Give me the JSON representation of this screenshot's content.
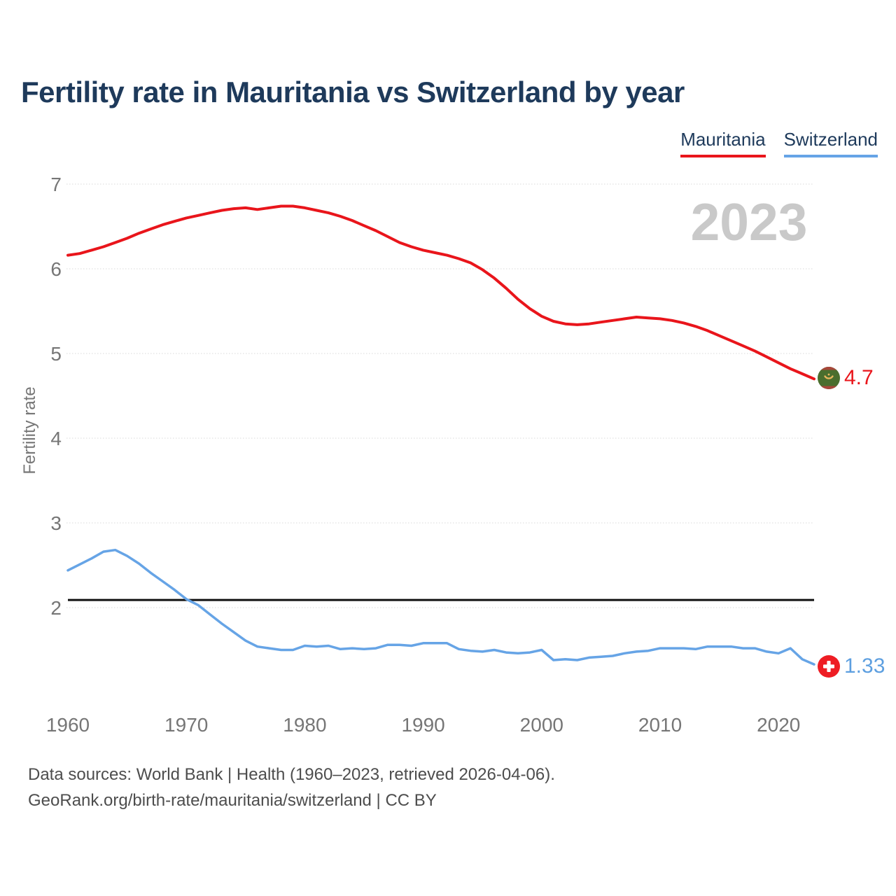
{
  "header": {
    "title": "Fertility rate in Mauritania vs Switzerland by year"
  },
  "legend": {
    "items": [
      {
        "label": "Mauritania",
        "color": "#e9151b"
      },
      {
        "label": "Switzerland",
        "color": "#66a4e6"
      }
    ]
  },
  "watermark": "2023",
  "chart_data": {
    "type": "line",
    "title": "Fertility rate in Mauritania vs Switzerland by year",
    "xlabel": "",
    "ylabel": "Fertility rate",
    "x_ticks": [
      1960,
      1970,
      1980,
      1990,
      2000,
      2010,
      2020
    ],
    "y_ticks": [
      2,
      3,
      4,
      5,
      6,
      7
    ],
    "x_range": [
      1960,
      2023
    ],
    "y_axis_range": [
      2,
      7
    ],
    "grid": true,
    "legend_position": "top-right",
    "reference_line": {
      "value": 2.09,
      "color": "#111111",
      "name": "replacement-level"
    },
    "years": [
      1960,
      1961,
      1962,
      1963,
      1964,
      1965,
      1966,
      1967,
      1968,
      1969,
      1970,
      1971,
      1972,
      1973,
      1974,
      1975,
      1976,
      1977,
      1978,
      1979,
      1980,
      1981,
      1982,
      1983,
      1984,
      1985,
      1986,
      1987,
      1988,
      1989,
      1990,
      1991,
      1992,
      1993,
      1994,
      1995,
      1996,
      1997,
      1998,
      1999,
      2000,
      2001,
      2002,
      2003,
      2004,
      2005,
      2006,
      2007,
      2008,
      2009,
      2010,
      2011,
      2012,
      2013,
      2014,
      2015,
      2016,
      2017,
      2018,
      2019,
      2020,
      2021,
      2022,
      2023
    ],
    "series": [
      {
        "name": "Mauritania",
        "color": "#e9151b",
        "end_label": "4.7",
        "values": [
          6.16,
          6.18,
          6.22,
          6.26,
          6.31,
          6.36,
          6.42,
          6.47,
          6.52,
          6.56,
          6.6,
          6.63,
          6.66,
          6.69,
          6.71,
          6.72,
          6.7,
          6.72,
          6.74,
          6.74,
          6.72,
          6.69,
          6.66,
          6.62,
          6.57,
          6.51,
          6.45,
          6.38,
          6.31,
          6.26,
          6.22,
          6.19,
          6.16,
          6.12,
          6.07,
          5.99,
          5.89,
          5.77,
          5.64,
          5.53,
          5.44,
          5.38,
          5.35,
          5.34,
          5.35,
          5.37,
          5.39,
          5.41,
          5.43,
          5.42,
          5.41,
          5.39,
          5.36,
          5.32,
          5.27,
          5.21,
          5.15,
          5.09,
          5.03,
          4.96,
          4.89,
          4.82,
          4.76,
          4.7
        ]
      },
      {
        "name": "Switzerland",
        "color": "#66a4e6",
        "end_label": "1.33",
        "values": [
          2.44,
          2.51,
          2.58,
          2.66,
          2.68,
          2.61,
          2.52,
          2.41,
          2.31,
          2.21,
          2.1,
          2.03,
          1.92,
          1.81,
          1.71,
          1.61,
          1.54,
          1.52,
          1.5,
          1.5,
          1.55,
          1.54,
          1.55,
          1.51,
          1.52,
          1.51,
          1.52,
          1.56,
          1.56,
          1.55,
          1.58,
          1.58,
          1.58,
          1.51,
          1.49,
          1.48,
          1.5,
          1.47,
          1.46,
          1.47,
          1.5,
          1.38,
          1.39,
          1.38,
          1.41,
          1.42,
          1.43,
          1.46,
          1.48,
          1.49,
          1.52,
          1.52,
          1.52,
          1.51,
          1.54,
          1.54,
          1.54,
          1.52,
          1.52,
          1.48,
          1.46,
          1.52,
          1.39,
          1.33
        ]
      }
    ]
  },
  "end_labels": {
    "mauritania": "4.7",
    "switzerland": "1.33"
  },
  "flags": {
    "mauritania": "mauritania-flag-icon",
    "switzerland": "switzerland-flag-icon"
  },
  "footer": {
    "line1": "Data sources: World Bank | Health (1960–2023, retrieved 2026-04-06).",
    "line2": "GeoRank.org/birth-rate/mauritania/switzerland | CC BY"
  },
  "colors": {
    "title": "#1e3a5b",
    "axis_text": "#767676",
    "gridline": "#d9d9d9",
    "watermark": "#c9c9c9",
    "footer_text": "#4d4d4d",
    "mauritania_red": "#e9151b",
    "switzerland_blue": "#66a4e6",
    "reference_black": "#111111"
  }
}
